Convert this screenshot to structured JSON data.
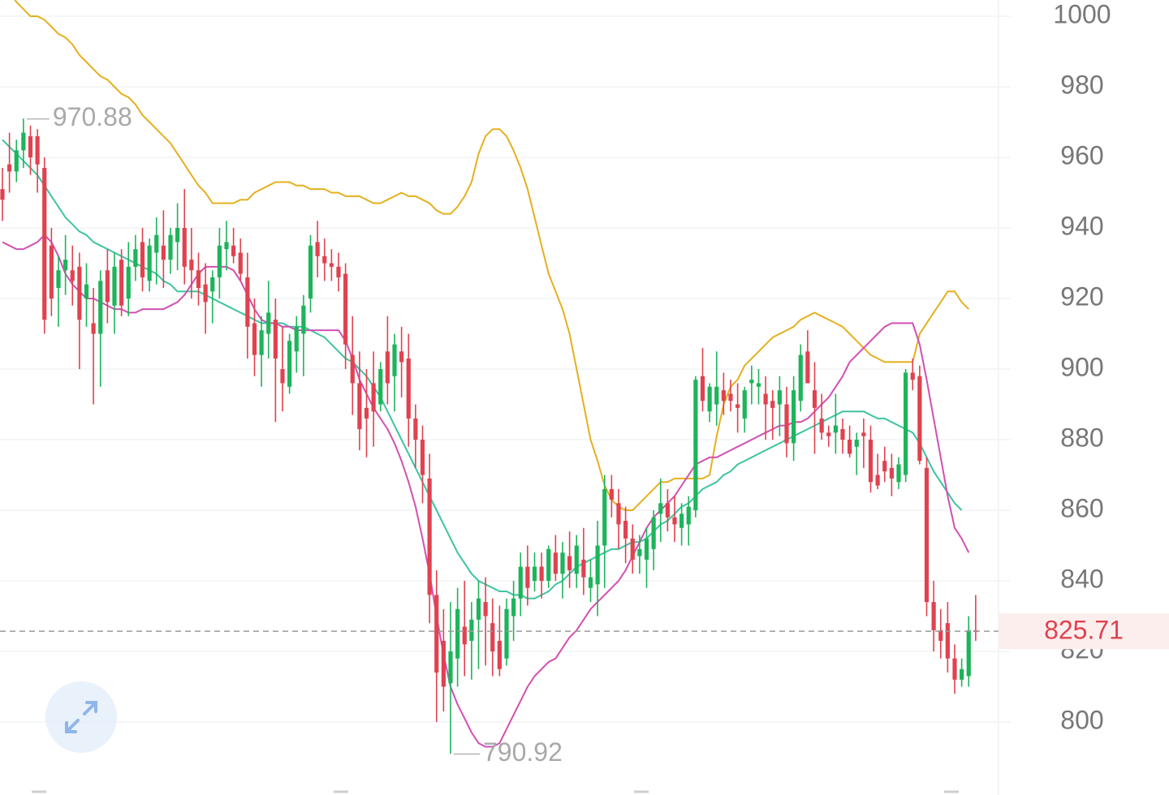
{
  "chart_data": {
    "type": "candlestick",
    "ylim": [
      790,
      1002
    ],
    "y_ticks": [
      "1000",
      "980",
      "960",
      "940",
      "920",
      "900",
      "880",
      "860",
      "840",
      "820",
      "800"
    ],
    "y_tick_values": [
      1000,
      980,
      960,
      940,
      920,
      900,
      880,
      860,
      840,
      820,
      800
    ],
    "current_price": {
      "label": "825.71",
      "value": 825.71
    },
    "high_marker": {
      "label": "970.88",
      "value": 970.88
    },
    "low_marker": {
      "label": "790.92",
      "value": 790.92
    },
    "candles": [
      [
        951,
        957,
        942,
        948
      ],
      [
        958,
        967,
        950,
        956
      ],
      [
        956,
        965,
        953,
        962
      ],
      [
        962,
        971,
        957,
        967
      ],
      [
        966,
        969,
        955,
        960
      ],
      [
        966,
        968,
        950,
        958
      ],
      [
        957,
        960,
        910,
        914
      ],
      [
        935,
        940,
        915,
        920
      ],
      [
        923,
        932,
        912,
        928
      ],
      [
        928,
        938,
        921,
        931
      ],
      [
        928,
        935,
        918,
        925
      ],
      [
        929,
        933,
        900,
        914
      ],
      [
        920,
        930,
        912,
        924
      ],
      [
        913,
        923,
        890,
        910
      ],
      [
        910,
        928,
        895,
        925
      ],
      [
        928,
        934,
        913,
        919
      ],
      [
        918,
        933,
        910,
        929
      ],
      [
        931,
        934,
        915,
        918
      ],
      [
        920,
        936,
        915,
        929
      ],
      [
        929,
        938,
        925,
        934
      ],
      [
        936,
        940,
        922,
        926
      ],
      [
        925,
        937,
        922,
        935
      ],
      [
        933,
        943,
        924,
        938
      ],
      [
        935,
        945,
        923,
        931
      ],
      [
        931,
        940,
        927,
        938
      ],
      [
        936,
        947,
        928,
        940
      ],
      [
        940,
        951,
        924,
        929
      ],
      [
        931,
        940,
        920,
        928
      ],
      [
        928,
        933,
        918,
        923
      ],
      [
        924,
        930,
        910,
        919
      ],
      [
        922,
        928,
        913,
        926
      ],
      [
        926,
        940,
        920,
        935
      ],
      [
        934,
        942,
        928,
        936
      ],
      [
        935,
        940,
        930,
        932
      ],
      [
        933,
        937,
        925,
        927
      ],
      [
        926,
        933,
        903,
        912
      ],
      [
        913,
        920,
        898,
        904
      ],
      [
        904,
        915,
        895,
        911
      ],
      [
        910,
        925,
        903,
        916
      ],
      [
        914,
        920,
        885,
        903
      ],
      [
        900,
        912,
        888,
        896
      ],
      [
        895,
        910,
        893,
        908
      ],
      [
        905,
        915,
        899,
        912
      ],
      [
        910,
        921,
        898,
        918
      ],
      [
        920,
        938,
        916,
        935
      ],
      [
        936,
        942,
        926,
        932
      ],
      [
        932,
        937,
        925,
        930
      ],
      [
        930,
        934,
        925,
        929
      ],
      [
        929,
        933,
        922,
        926
      ],
      [
        927,
        930,
        900,
        907
      ],
      [
        904,
        915,
        887,
        896
      ],
      [
        896,
        905,
        877,
        883
      ],
      [
        889,
        900,
        875,
        886
      ],
      [
        896,
        905,
        878,
        888
      ],
      [
        890,
        902,
        888,
        900
      ],
      [
        905,
        915,
        890,
        896
      ],
      [
        898,
        910,
        888,
        907
      ],
      [
        905,
        912,
        892,
        902
      ],
      [
        903,
        910,
        878,
        886
      ],
      [
        886,
        890,
        872,
        880
      ],
      [
        880,
        884,
        862,
        870
      ],
      [
        869,
        876,
        828,
        836
      ],
      [
        836,
        843,
        800,
        814
      ],
      [
        823,
        832,
        803,
        810
      ],
      [
        811,
        834,
        791,
        820
      ],
      [
        818,
        838,
        810,
        832
      ],
      [
        827,
        840,
        813,
        822
      ],
      [
        823,
        834,
        812,
        829
      ],
      [
        829,
        840,
        815,
        835
      ],
      [
        834,
        841,
        816,
        830
      ],
      [
        828,
        835,
        813,
        820
      ],
      [
        823,
        833,
        813,
        815
      ],
      [
        818,
        835,
        816,
        832
      ],
      [
        830,
        840,
        823,
        835
      ],
      [
        835,
        848,
        830,
        844
      ],
      [
        844,
        850,
        833,
        838
      ],
      [
        840,
        848,
        837,
        844
      ],
      [
        844,
        848,
        835,
        840
      ],
      [
        840,
        850,
        838,
        849
      ],
      [
        848,
        853,
        840,
        842
      ],
      [
        842,
        851,
        835,
        848
      ],
      [
        847,
        854,
        838,
        843
      ],
      [
        842,
        853,
        838,
        850
      ],
      [
        846,
        855,
        836,
        841
      ],
      [
        838,
        846,
        834,
        841
      ],
      [
        839,
        857,
        830,
        850
      ],
      [
        850,
        870,
        838,
        866
      ],
      [
        866,
        870,
        858,
        863
      ],
      [
        862,
        866,
        849,
        856
      ],
      [
        857,
        861,
        845,
        852
      ],
      [
        852,
        856,
        842,
        846
      ],
      [
        847,
        853,
        842,
        849
      ],
      [
        846,
        855,
        838,
        852
      ],
      [
        849,
        860,
        843,
        858
      ],
      [
        859,
        869,
        851,
        862
      ],
      [
        862,
        866,
        854,
        858
      ],
      [
        858,
        864,
        851,
        856
      ],
      [
        855,
        862,
        850,
        859
      ],
      [
        856,
        864,
        850,
        861
      ],
      [
        860,
        898,
        858,
        897
      ],
      [
        898,
        906,
        888,
        891
      ],
      [
        888,
        896,
        885,
        895
      ],
      [
        890,
        905,
        884,
        895
      ],
      [
        894,
        899,
        887,
        891
      ],
      [
        893,
        897,
        888,
        891
      ],
      [
        890,
        896,
        882,
        889
      ],
      [
        886,
        895,
        882,
        894
      ],
      [
        896,
        901,
        890,
        897
      ],
      [
        895,
        900,
        890,
        896
      ],
      [
        893,
        898,
        880,
        890
      ],
      [
        891,
        894,
        880,
        889
      ],
      [
        890,
        898,
        881,
        894
      ],
      [
        890,
        895,
        875,
        879
      ],
      [
        879,
        898,
        874,
        894
      ],
      [
        891,
        907,
        888,
        904
      ],
      [
        905,
        911,
        896,
        896
      ],
      [
        894,
        902,
        876,
        889
      ],
      [
        886,
        893,
        880,
        882
      ],
      [
        882,
        884,
        878,
        881
      ],
      [
        882,
        893,
        876,
        884
      ],
      [
        883,
        886,
        876,
        880
      ],
      [
        880,
        884,
        875,
        876
      ],
      [
        878,
        882,
        870,
        880
      ],
      [
        882,
        886,
        872,
        881
      ],
      [
        880,
        884,
        865,
        868
      ],
      [
        870,
        876,
        866,
        867
      ],
      [
        874,
        878,
        868,
        871
      ],
      [
        872,
        876,
        864,
        869
      ],
      [
        868,
        875,
        866,
        873
      ],
      [
        870,
        900,
        868,
        899
      ],
      [
        899,
        903,
        894,
        897
      ],
      [
        898,
        901,
        873,
        874
      ],
      [
        872,
        875,
        830,
        834
      ],
      [
        834,
        840,
        820,
        826
      ],
      [
        826,
        832,
        818,
        823
      ],
      [
        828,
        834,
        814,
        818
      ],
      [
        818,
        822,
        808,
        812
      ],
      [
        812,
        818,
        810,
        815
      ],
      [
        813,
        830,
        810,
        826
      ],
      [
        826,
        836,
        823,
        825.71
      ]
    ],
    "series": [
      {
        "color": "#E5B01E",
        "values": [
          1009,
          1007,
          1004,
          1002,
          1000,
          1000,
          999,
          997,
          995,
          994,
          992,
          989,
          987,
          985,
          983,
          982,
          980,
          978,
          977,
          975,
          972,
          970,
          968,
          966,
          964,
          961,
          958,
          955,
          952,
          950,
          947,
          947,
          947,
          947,
          948,
          948,
          950,
          951,
          952,
          953,
          953,
          953,
          952,
          952,
          951,
          951,
          951,
          950,
          950,
          949,
          949,
          949,
          948,
          947,
          947,
          948,
          949,
          950,
          949,
          949,
          948,
          947,
          945,
          944,
          944,
          946,
          949,
          953,
          961,
          966,
          968,
          968,
          966,
          962,
          957,
          951,
          943,
          935,
          927,
          922,
          917,
          910,
          900,
          890,
          880,
          874,
          867,
          863,
          861,
          860,
          860,
          862,
          864,
          866,
          868,
          868,
          869,
          869,
          869,
          869,
          869,
          870,
          881,
          890,
          895,
          897,
          901,
          903,
          905,
          907,
          909,
          910,
          911,
          912,
          914,
          915,
          916,
          915,
          914,
          913,
          912,
          910,
          908,
          906,
          904,
          903,
          902,
          902,
          902,
          902,
          902,
          910,
          913,
          916,
          919,
          922,
          922,
          919,
          917
        ]
      },
      {
        "color": "#3DC4A0",
        "values": [
          965,
          963,
          961,
          959,
          957,
          955,
          952,
          949,
          946,
          943,
          941,
          939,
          938,
          936,
          935,
          934,
          933,
          932,
          931,
          930,
          929,
          928,
          927,
          925,
          924,
          922,
          922,
          922,
          922,
          921,
          920,
          919,
          918,
          917,
          916,
          915,
          914,
          913,
          913,
          913,
          913,
          912,
          912,
          912,
          911,
          910,
          909,
          907,
          905,
          903,
          902,
          900,
          898,
          895,
          892,
          888,
          884,
          880,
          876,
          872,
          868,
          864,
          860,
          856,
          852,
          848,
          845,
          842,
          840,
          839,
          838,
          837,
          837,
          836,
          836,
          835,
          835,
          836,
          837,
          839,
          840,
          842,
          844,
          845,
          846,
          847,
          848,
          849,
          849,
          850,
          851,
          851,
          852,
          854,
          856,
          857,
          859,
          861,
          862,
          864,
          866,
          867,
          868,
          870,
          871,
          873,
          874,
          875,
          876,
          877,
          878,
          879,
          880,
          881,
          882,
          883,
          884,
          885,
          886,
          887,
          888,
          888,
          888,
          888,
          887,
          886,
          886,
          885,
          884,
          883,
          882,
          879,
          875,
          871,
          868,
          865,
          862,
          860
        ]
      },
      {
        "color": "#D24FB3",
        "values": [
          936,
          935,
          934,
          934,
          935,
          936,
          938,
          936,
          932,
          927,
          924,
          922,
          920,
          920,
          919,
          918,
          917,
          917,
          916,
          916,
          917,
          917,
          917,
          917,
          918,
          919,
          921,
          924,
          927,
          929,
          929,
          929,
          929,
          928,
          925,
          921,
          917,
          914,
          913,
          913,
          912,
          912,
          911,
          911,
          911,
          911,
          911,
          911,
          911,
          908,
          903,
          897,
          893,
          889,
          886,
          883,
          879,
          874,
          868,
          861,
          852,
          842,
          830,
          819,
          810,
          805,
          801,
          797,
          794,
          793,
          793,
          794,
          798,
          802,
          806,
          810,
          813,
          815,
          817,
          818,
          821,
          824,
          826,
          829,
          832,
          834,
          836,
          838,
          840,
          843,
          847,
          851,
          855,
          858,
          860,
          862,
          864,
          867,
          870,
          873,
          874,
          875,
          875,
          876,
          877,
          878,
          879,
          880,
          881,
          882,
          883,
          884,
          884,
          885,
          885,
          886,
          888,
          890,
          892,
          895,
          898,
          902,
          904,
          906,
          908,
          910,
          912,
          913,
          913,
          913,
          913,
          907,
          897,
          886,
          875,
          864,
          855,
          852,
          848
        ]
      }
    ]
  },
  "ui": {
    "expand_icon": "expand-arrows-icon"
  }
}
